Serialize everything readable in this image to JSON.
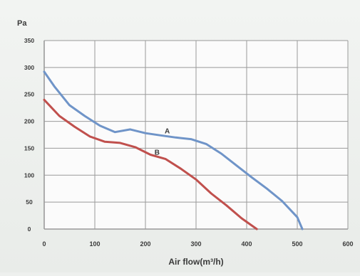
{
  "chart_data": {
    "type": "line",
    "title": "",
    "xlabel": "Air flow(m³/h)",
    "ylabel": "Pa",
    "xlim": [
      0,
      600
    ],
    "ylim": [
      0,
      350
    ],
    "x_ticks": [
      "0",
      "100",
      "200",
      "300",
      "400",
      "500",
      "600"
    ],
    "y_ticks": [
      "0",
      "50",
      "100",
      "150",
      "200",
      "250",
      "300",
      "350"
    ],
    "grid": true,
    "series": [
      {
        "name": "A",
        "color": "#6f94c8",
        "x": [
          0,
          20,
          50,
          80,
          110,
          140,
          170,
          200,
          230,
          260,
          290,
          320,
          350,
          380,
          410,
          440,
          470,
          500,
          510
        ],
        "y": [
          292,
          265,
          230,
          210,
          192,
          180,
          185,
          178,
          174,
          170,
          167,
          158,
          140,
          118,
          96,
          75,
          52,
          22,
          0
        ]
      },
      {
        "name": "B",
        "color": "#c0504d",
        "x": [
          0,
          30,
          60,
          90,
          120,
          150,
          180,
          210,
          240,
          270,
          300,
          330,
          360,
          390,
          420
        ],
        "y": [
          240,
          210,
          190,
          172,
          162,
          160,
          152,
          138,
          130,
          112,
          92,
          66,
          44,
          20,
          0
        ]
      }
    ]
  }
}
